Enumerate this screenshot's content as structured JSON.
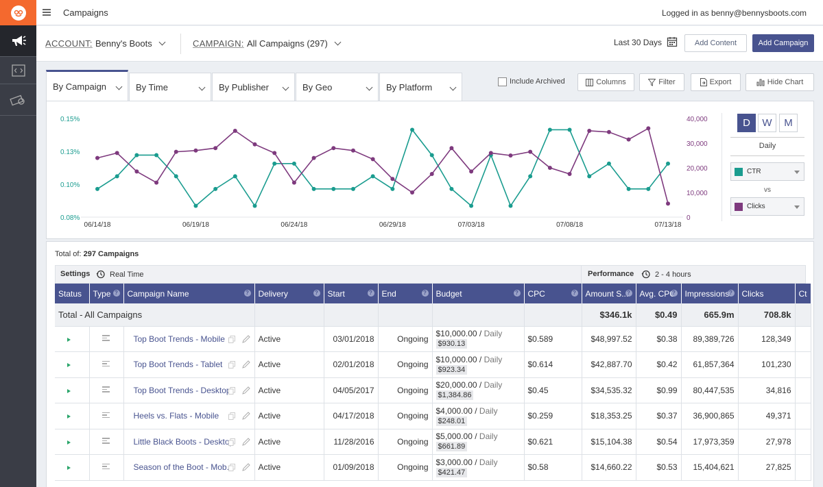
{
  "topbar": {
    "page_title": "Campaigns",
    "logged_in": "Logged in as benny@bennysboots.com"
  },
  "filters": {
    "account_label": "ACCOUNT:",
    "account_value": "Benny's Boots",
    "campaign_label": "CAMPAIGN:",
    "campaign_value": "All Campaigns (297)",
    "date_range": "Last 30 Days",
    "add_content": "Add Content",
    "add_campaign": "Add Campaign"
  },
  "tabs": [
    "By Campaign",
    "By Time",
    "By Publisher",
    "By Geo",
    "By Platform"
  ],
  "toolbar": {
    "include_archived": "Include Archived",
    "columns": "Columns",
    "filter": "Filter",
    "export": "Export",
    "hide_chart": "Hide Chart"
  },
  "chart_controls": {
    "d": "D",
    "w": "W",
    "m": "M",
    "period": "Daily",
    "metric1": "CTR",
    "vs": "vs",
    "metric2": "Clicks",
    "metric1_color": "#1a9c8f",
    "metric2_color": "#7e3a7e"
  },
  "chart_data": {
    "type": "line",
    "x": [
      "06/14/18",
      "06/15/18",
      "06/16/18",
      "06/17/18",
      "06/18/18",
      "06/19/18",
      "06/20/18",
      "06/21/18",
      "06/22/18",
      "06/23/18",
      "06/24/18",
      "06/25/18",
      "06/26/18",
      "06/27/18",
      "06/28/18",
      "06/29/18",
      "06/30/18",
      "07/01/18",
      "07/02/18",
      "07/03/18",
      "07/04/18",
      "07/05/18",
      "07/06/18",
      "07/07/18",
      "07/08/18",
      "07/09/18",
      "07/10/18",
      "07/11/18",
      "07/12/18",
      "07/13/18"
    ],
    "xticks": [
      "06/14/18",
      "06/19/18",
      "06/24/18",
      "06/29/18",
      "07/03/18",
      "07/08/18",
      "07/13/18"
    ],
    "yleft_ticks": [
      "0.15%",
      "0.13%",
      "0.10%",
      "0.08%"
    ],
    "yright_ticks": [
      "40,000",
      "30,000",
      "20,000",
      "10,000",
      "0"
    ],
    "yleft_range": [
      0.08,
      0.15
    ],
    "yright_range": [
      0,
      40000
    ],
    "series": [
      {
        "name": "CTR",
        "axis": "left",
        "color": "#1a9c8f",
        "values": [
          0.1,
          0.109,
          0.124,
          0.124,
          0.109,
          0.088,
          0.1,
          0.109,
          0.088,
          0.118,
          0.118,
          0.1,
          0.1,
          0.1,
          0.109,
          0.1,
          0.142,
          0.124,
          0.1,
          0.088,
          0.124,
          0.088,
          0.109,
          0.142,
          0.142,
          0.109,
          0.118,
          0.1,
          0.1,
          0.118
        ]
      },
      {
        "name": "Clicks",
        "axis": "right",
        "color": "#7e3a7e",
        "values": [
          24000,
          26000,
          18500,
          14000,
          26500,
          27000,
          28000,
          35000,
          29500,
          26000,
          14000,
          24000,
          28000,
          27000,
          23500,
          15500,
          10000,
          17500,
          28000,
          18500,
          26000,
          25000,
          26500,
          20000,
          17500,
          35000,
          34500,
          31500,
          36000,
          5500
        ]
      }
    ]
  },
  "table": {
    "total_of_prefix": "Total of:",
    "total_of_value": "297 Campaigns",
    "settings_label": "Settings",
    "settings_value": "Real Time",
    "performance_label": "Performance",
    "performance_value": "2 - 4 hours",
    "headers": [
      "Status",
      "Type",
      "Campaign Name",
      "Delivery",
      "Start",
      "End",
      "Budget",
      "CPC",
      "Amount S...",
      "Avg. CPC",
      "Impressions",
      "Clicks",
      "Ct"
    ],
    "total_row": {
      "label": "Total - All Campaigns",
      "amount": "$346.1k",
      "avg_cpc": "$0.49",
      "impressions": "665.9m",
      "clicks": "708.8k"
    },
    "rows": [
      {
        "name": "Top Boot Trends - Mobile",
        "delivery": "Active",
        "start": "03/01/2018",
        "end": "Ongoing",
        "budget": "$10,000.00 /",
        "budget_period": "Daily",
        "spent": "$930.13",
        "cpc": "$0.589",
        "amount": "$48,997.52",
        "avg_cpc": "$0.38",
        "impressions": "89,389,726",
        "clicks": "128,349"
      },
      {
        "name": "Top Boot Trends - Tablet",
        "delivery": "Active",
        "start": "02/01/2018",
        "end": "Ongoing",
        "budget": "$10,000.00 /",
        "budget_period": "Daily",
        "spent": "$923.34",
        "cpc": "$0.614",
        "amount": "$42,887.70",
        "avg_cpc": "$0.42",
        "impressions": "61,857,364",
        "clicks": "101,230"
      },
      {
        "name": "Top Boot Trends - Desktop",
        "delivery": "Active",
        "start": "04/05/2017",
        "end": "Ongoing",
        "budget": "$20,000.00 /",
        "budget_period": "Daily",
        "spent": "$1,384.86",
        "cpc": "$0.45",
        "amount": "$34,535.32",
        "avg_cpc": "$0.99",
        "impressions": "80,447,535",
        "clicks": "34,816"
      },
      {
        "name": "Heels vs. Flats - Mobile",
        "delivery": "Active",
        "start": "04/17/2018",
        "end": "Ongoing",
        "budget": "$4,000.00 /",
        "budget_period": "Daily",
        "spent": "$248.01",
        "cpc": "$0.259",
        "amount": "$18,353.25",
        "avg_cpc": "$0.37",
        "impressions": "36,900,865",
        "clicks": "49,371"
      },
      {
        "name": "Little Black Boots - Desktop",
        "delivery": "Active",
        "start": "11/28/2016",
        "end": "Ongoing",
        "budget": "$5,000.00 /",
        "budget_period": "Daily",
        "spent": "$661.89",
        "cpc": "$0.621",
        "amount": "$15,104.38",
        "avg_cpc": "$0.54",
        "impressions": "17,973,359",
        "clicks": "27,978"
      },
      {
        "name": "Season of the Boot - Mob...",
        "delivery": "Active",
        "start": "01/09/2018",
        "end": "Ongoing",
        "budget": "$3,000.00 /",
        "budget_period": "Daily",
        "spent": "$421.47",
        "cpc": "$0.58",
        "amount": "$14,660.22",
        "avg_cpc": "$0.53",
        "impressions": "15,404,621",
        "clicks": "27,825"
      }
    ]
  }
}
